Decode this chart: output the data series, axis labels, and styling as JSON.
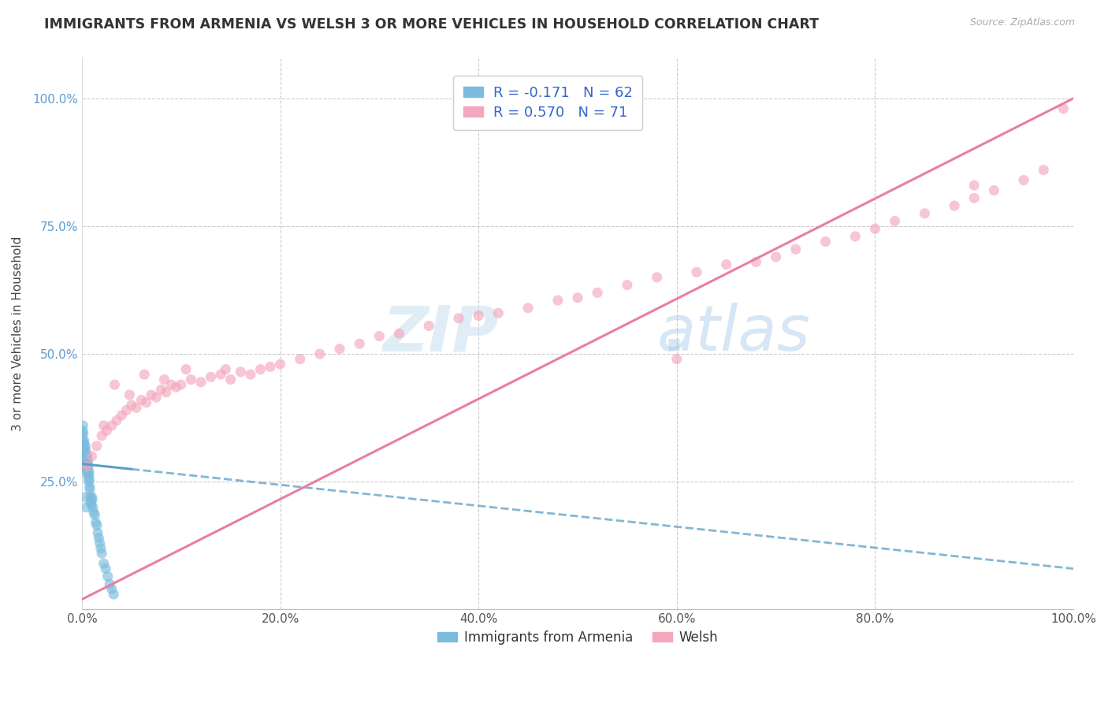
{
  "title": "IMMIGRANTS FROM ARMENIA VS WELSH 3 OR MORE VEHICLES IN HOUSEHOLD CORRELATION CHART",
  "source": "Source: ZipAtlas.com",
  "ylabel": "3 or more Vehicles in Household",
  "legend_label1": "Immigrants from Armenia",
  "legend_label2": "Welsh",
  "r1": -0.171,
  "n1": 62,
  "r2": 0.57,
  "n2": 71,
  "color1": "#7bbcde",
  "color2": "#f4a6bc",
  "trendline1_color": "#5a9ec8",
  "trendline2_color": "#e87fa0",
  "background_color": "#ffffff",
  "watermark_zip": "ZIP",
  "watermark_atlas": "atlas",
  "watermark_dot": ".",
  "xlim": [
    0.0,
    100.0
  ],
  "ylim": [
    0.0,
    108.0
  ],
  "xticks": [
    0,
    20,
    40,
    60,
    80,
    100
  ],
  "yticks": [
    25,
    50,
    75,
    100
  ],
  "armenia_x": [
    0.1,
    0.12,
    0.15,
    0.18,
    0.2,
    0.22,
    0.25,
    0.28,
    0.3,
    0.32,
    0.35,
    0.38,
    0.4,
    0.42,
    0.45,
    0.48,
    0.5,
    0.52,
    0.55,
    0.58,
    0.6,
    0.62,
    0.65,
    0.68,
    0.7,
    0.72,
    0.75,
    0.78,
    0.8,
    0.85,
    0.9,
    0.95,
    1.0,
    1.05,
    1.1,
    1.2,
    1.3,
    1.4,
    1.5,
    1.6,
    1.7,
    1.8,
    1.9,
    2.0,
    2.2,
    2.4,
    2.6,
    2.8,
    3.0,
    3.2,
    0.05,
    0.07,
    0.08,
    0.1,
    0.13,
    0.16,
    0.19,
    0.23,
    0.27,
    0.31,
    0.36,
    0.43
  ],
  "armenia_y": [
    28.0,
    29.5,
    31.0,
    32.0,
    30.5,
    33.0,
    31.5,
    29.0,
    30.0,
    28.5,
    32.0,
    29.0,
    31.0,
    30.0,
    28.0,
    27.5,
    29.0,
    28.0,
    30.0,
    27.0,
    29.0,
    26.0,
    28.0,
    25.0,
    27.0,
    26.5,
    25.5,
    24.0,
    23.5,
    22.0,
    21.0,
    20.5,
    22.0,
    21.5,
    20.0,
    19.0,
    18.5,
    17.0,
    16.5,
    15.0,
    14.0,
    13.0,
    12.0,
    11.0,
    9.0,
    8.0,
    6.5,
    5.0,
    4.0,
    3.0,
    34.0,
    35.0,
    33.0,
    36.0,
    34.5,
    32.5,
    31.0,
    29.5,
    28.0,
    27.0,
    22.0,
    20.0
  ],
  "welsh_x": [
    0.5,
    1.0,
    1.5,
    2.0,
    2.5,
    3.0,
    3.5,
    4.0,
    4.5,
    5.0,
    5.5,
    6.0,
    6.5,
    7.0,
    7.5,
    8.0,
    8.5,
    9.0,
    9.5,
    10.0,
    11.0,
    12.0,
    13.0,
    14.0,
    15.0,
    16.0,
    17.0,
    18.0,
    19.0,
    20.0,
    22.0,
    24.0,
    26.0,
    28.0,
    30.0,
    32.0,
    35.0,
    38.0,
    40.0,
    42.0,
    45.0,
    48.0,
    50.0,
    52.0,
    55.0,
    58.0,
    60.0,
    62.0,
    65.0,
    68.0,
    70.0,
    72.0,
    75.0,
    78.0,
    80.0,
    82.0,
    85.0,
    88.0,
    90.0,
    92.0,
    95.0,
    97.0,
    99.0,
    2.2,
    3.3,
    4.8,
    6.3,
    8.3,
    10.5,
    14.5,
    90.0
  ],
  "welsh_y": [
    28.0,
    30.0,
    32.0,
    34.0,
    35.0,
    36.0,
    37.0,
    38.0,
    39.0,
    40.0,
    39.5,
    41.0,
    40.5,
    42.0,
    41.5,
    43.0,
    42.5,
    44.0,
    43.5,
    44.0,
    45.0,
    44.5,
    45.5,
    46.0,
    45.0,
    46.5,
    46.0,
    47.0,
    47.5,
    48.0,
    49.0,
    50.0,
    51.0,
    52.0,
    53.5,
    54.0,
    55.5,
    57.0,
    57.5,
    58.0,
    59.0,
    60.5,
    61.0,
    62.0,
    63.5,
    65.0,
    49.0,
    66.0,
    67.5,
    68.0,
    69.0,
    70.5,
    72.0,
    73.0,
    74.5,
    76.0,
    77.5,
    79.0,
    80.5,
    82.0,
    84.0,
    86.0,
    98.0,
    36.0,
    44.0,
    42.0,
    46.0,
    45.0,
    47.0,
    47.0,
    83.0
  ],
  "trendline1_x0": 0.0,
  "trendline1_y0": 28.5,
  "trendline1_x1": 100.0,
  "trendline1_y1": 8.0,
  "trendline2_x0": 0.0,
  "trendline2_y0": 2.0,
  "trendline2_x1": 100.0,
  "trendline2_y1": 100.0
}
